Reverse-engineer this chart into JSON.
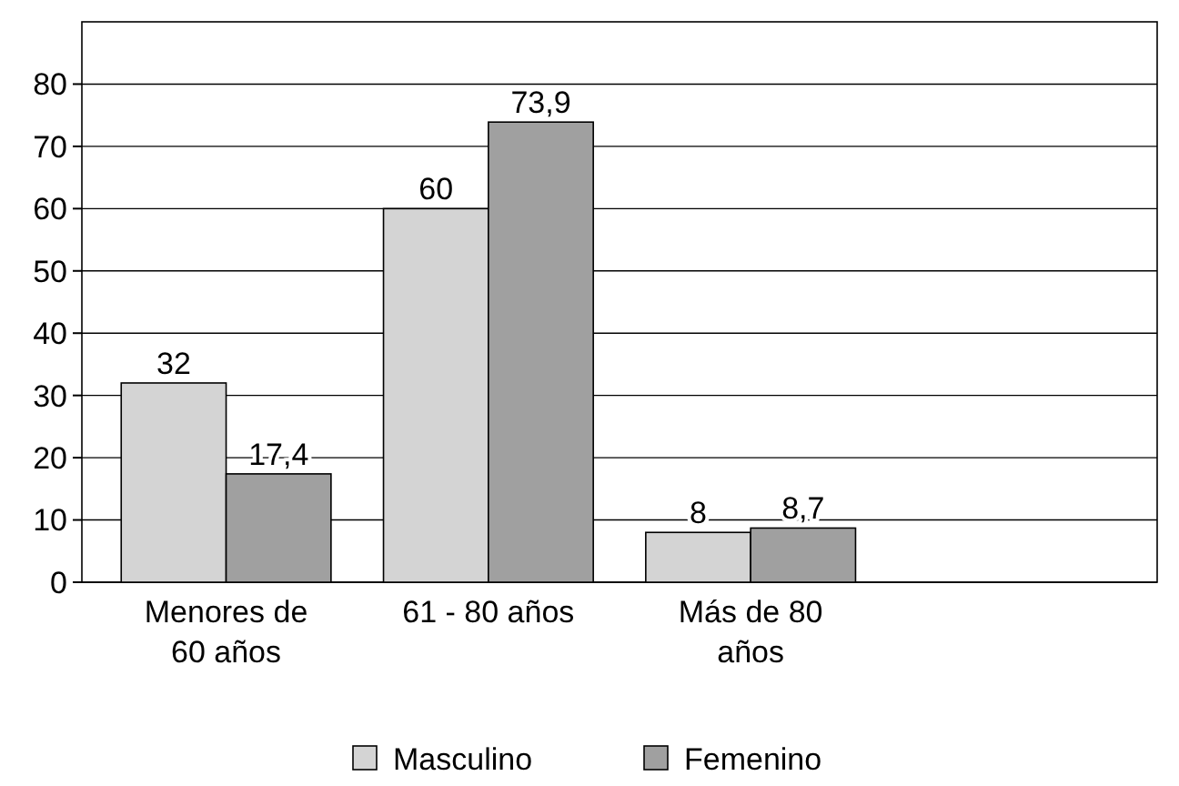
{
  "chart_data": {
    "type": "bar",
    "categories": [
      "Menores de 60 años",
      "61 - 80 años",
      "Más de 80 años",
      null
    ],
    "series": [
      {
        "name": "Masculino",
        "color": "#d4d4d4",
        "values": [
          32,
          60,
          8,
          null
        ],
        "value_labels": [
          "32",
          "60",
          "8",
          null
        ]
      },
      {
        "name": "Femenino",
        "color": "#a0a0a0",
        "values": [
          17.4,
          73.9,
          8.7,
          null
        ],
        "value_labels": [
          "17,4",
          "73,9",
          "8,7",
          null
        ]
      }
    ],
    "ylim": [
      0,
      90
    ],
    "yticks": [
      0,
      10,
      20,
      30,
      40,
      50,
      60,
      70,
      80
    ],
    "grid": "y",
    "legend": "bottom"
  }
}
